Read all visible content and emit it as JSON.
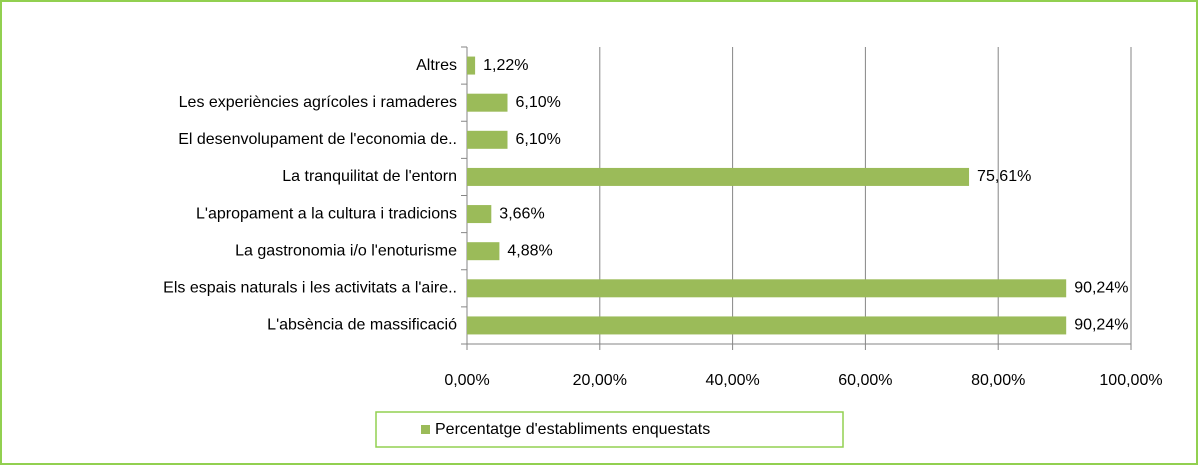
{
  "chart_data": {
    "type": "bar",
    "orientation": "horizontal",
    "categories": [
      "Altres",
      "Les experiències agrícoles i ramaderes",
      "El desenvolupament de l'economia de..",
      "La tranquilitat de l'entorn",
      "L'apropament a la cultura i tradicions",
      "La gastronomia i/o l'enoturisme",
      "Els espais naturals i les activitats a l'aire..",
      "L'absència de massificació"
    ],
    "series": [
      {
        "name": "Percentatge d'establiments enquestats",
        "color": "#9bbb59",
        "values": [
          1.22,
          6.1,
          6.1,
          75.61,
          3.66,
          4.88,
          90.24,
          90.24
        ],
        "value_labels": [
          "1,22%",
          "6,10%",
          "6,10%",
          "75,61%",
          "3,66%",
          "4,88%",
          "90,24%",
          "90,24%"
        ]
      }
    ],
    "xlim": [
      0,
      100
    ],
    "xticks": [
      {
        "value": 0,
        "label": "0,00%"
      },
      {
        "value": 20,
        "label": "20,00%"
      },
      {
        "value": 40,
        "label": "40,00%"
      },
      {
        "value": 60,
        "label": "60,00%"
      },
      {
        "value": 80,
        "label": "80,00%"
      },
      {
        "value": 100,
        "label": "100,00%"
      }
    ],
    "grid": true,
    "legend": "bottom"
  }
}
